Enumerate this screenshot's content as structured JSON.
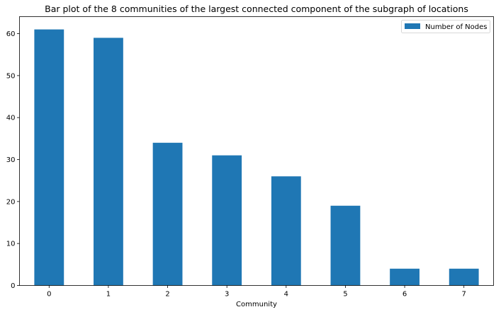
{
  "chart_data": {
    "type": "bar",
    "title": "Bar plot of the 8 communities of the largest connected component of the subgraph of locations",
    "xlabel": "Community",
    "ylabel": "",
    "categories": [
      "0",
      "1",
      "2",
      "3",
      "4",
      "5",
      "6",
      "7"
    ],
    "series": [
      {
        "name": "Number of Nodes",
        "values": [
          61,
          59,
          34,
          31,
          26,
          19,
          4,
          4
        ],
        "color": "#1f77b4"
      }
    ],
    "ylim": [
      0,
      64.05
    ],
    "yticks": [
      0,
      10,
      20,
      30,
      40,
      50,
      60
    ],
    "grid": false,
    "legend_position": "top-right"
  }
}
